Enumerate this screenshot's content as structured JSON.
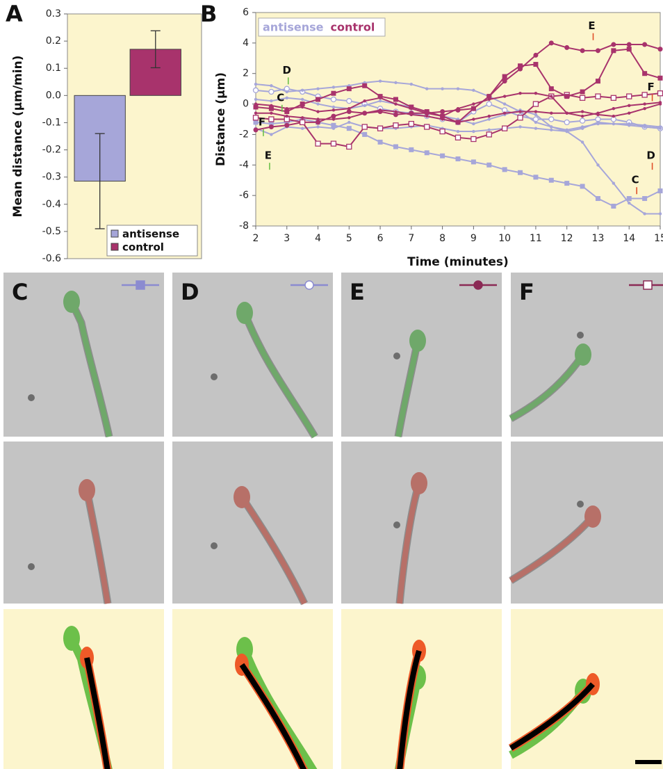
{
  "chart_data": [
    {
      "type": "bar",
      "label": "A",
      "ylabel": "Mean distance (µm/min)",
      "ylim": [
        -0.6,
        0.3
      ],
      "yticks": [
        0.3,
        0.2,
        0.1,
        {
          "value": 0,
          "label": "0.0"
        },
        -0.1,
        -0.2,
        -0.3,
        -0.4,
        -0.5,
        -0.6
      ],
      "background": "#fcf5cd",
      "legend": "lower right",
      "series": [
        {
          "name": "antisense",
          "color": "#a6a6d9",
          "values": [
            -0.315
          ],
          "errors": [
            0.175
          ]
        },
        {
          "name": "control",
          "color": "#a8336c",
          "values": [
            0.17
          ],
          "errors": [
            0.068
          ]
        }
      ]
    },
    {
      "type": "line",
      "label": "B",
      "xlabel": "Time (minutes)",
      "ylabel": "Distance (µm)",
      "xlim": [
        2,
        15
      ],
      "xticks": [
        2,
        3,
        4,
        5,
        6,
        7,
        8,
        9,
        10,
        11,
        12,
        13,
        14,
        15
      ],
      "ylim": [
        -8,
        6
      ],
      "yticks": [
        6,
        4,
        2,
        0,
        -2,
        -4,
        -6,
        -8
      ],
      "background": "#fcf5cd",
      "legend": [
        {
          "name": "antisense",
          "color": "#a6a6d9"
        },
        {
          "name": "control",
          "color": "#a8336c"
        }
      ],
      "x": [
        2,
        2.5,
        3,
        3.5,
        4,
        4.5,
        5,
        5.5,
        6,
        6.5,
        7,
        7.5,
        8,
        8.5,
        9,
        9.5,
        10,
        10.5,
        11,
        11.5,
        12,
        12.5,
        13,
        13.5,
        14,
        14.5,
        15
      ],
      "series": [
        {
          "color": "#a6a6d9",
          "marker": "square",
          "values": [
            -1.2,
            -1.3,
            -1.2,
            -1.0,
            -1.2,
            -1.4,
            -1.6,
            -2.0,
            -2.5,
            -2.8,
            -3.0,
            -3.2,
            -3.4,
            -3.6,
            -3.8,
            -4.0,
            -4.3,
            -4.5,
            -4.8,
            -5.0,
            -5.2,
            -5.4,
            -6.2,
            -6.7,
            -6.2,
            -6.2,
            -5.7
          ]
        },
        {
          "color": "#a6a6d9",
          "marker": "circle-open",
          "values": [
            0.9,
            0.8,
            1.0,
            0.8,
            0.5,
            0.3,
            0.2,
            0.0,
            -0.3,
            -0.5,
            -0.6,
            -0.8,
            -1.0,
            -1.2,
            -0.5,
            0.0,
            -0.4,
            -0.8,
            -1.0,
            -1.0,
            -1.2,
            -1.1,
            -1.0,
            -1.0,
            -1.2,
            -1.5,
            -1.6
          ]
        },
        {
          "color": "#a6a6d9",
          "marker": "dot",
          "values": [
            1.3,
            1.2,
            0.8,
            0.9,
            1.0,
            1.1,
            1.2,
            1.4,
            1.5,
            1.4,
            1.3,
            1.0,
            1.0,
            1.0,
            0.9,
            0.5,
            0.0,
            -0.5,
            -1.2,
            -1.5,
            -1.8,
            -2.5,
            -4.0,
            -5.2,
            -6.5,
            -7.2,
            -7.2
          ]
        },
        {
          "color": "#a6a6d9",
          "marker": "dot",
          "values": [
            -1.6,
            -2.0,
            -1.5,
            -1.6,
            -1.5,
            -1.6,
            -1.2,
            -1.5,
            -1.6,
            -1.6,
            -1.5,
            -1.4,
            -1.6,
            -1.8,
            -1.8,
            -1.7,
            -1.6,
            -1.5,
            -1.6,
            -1.7,
            -1.8,
            -1.6,
            -1.2,
            -1.3,
            -1.3,
            -1.4,
            -1.5
          ]
        },
        {
          "color": "#a6a6d9",
          "marker": "dot",
          "values": [
            0.3,
            0.2,
            0.4,
            0.3,
            0.0,
            -0.2,
            -0.3,
            -0.1,
            0.2,
            0.0,
            -0.2,
            -0.5,
            -0.8,
            -1.0,
            -1.3,
            -1.0,
            -0.7,
            -0.4,
            -0.7,
            -1.5,
            -1.7,
            -1.5,
            -1.3,
            -1.3,
            -1.4,
            -1.5,
            -1.6
          ]
        },
        {
          "color": "#a8336c",
          "marker": "circle",
          "values": [
            -1.7,
            -1.5,
            -1.4,
            -1.2,
            -1.2,
            -0.8,
            -0.5,
            -0.6,
            -0.5,
            -0.7,
            -0.6,
            -0.6,
            -0.5,
            -0.4,
            -0.3,
            0.5,
            1.5,
            2.3,
            3.2,
            4.0,
            3.7,
            3.5,
            3.5,
            3.9,
            3.9,
            3.9,
            3.6
          ]
        },
        {
          "color": "#a8336c",
          "marker": "square-open",
          "values": [
            -0.9,
            -1.0,
            -1.0,
            -1.2,
            -2.6,
            -2.6,
            -2.8,
            -1.5,
            -1.6,
            -1.4,
            -1.3,
            -1.5,
            -1.8,
            -2.2,
            -2.3,
            -2.0,
            -1.6,
            -0.9,
            0.0,
            0.5,
            0.6,
            0.4,
            0.5,
            0.4,
            0.5,
            0.6,
            0.7
          ]
        },
        {
          "color": "#a8336c",
          "marker": "square",
          "values": [
            -0.2,
            -0.3,
            -0.5,
            0.0,
            0.3,
            0.7,
            1.0,
            1.2,
            0.5,
            0.3,
            -0.2,
            -0.5,
            -0.8,
            -1.2,
            -0.3,
            0.5,
            1.8,
            2.5,
            2.6,
            1.0,
            0.5,
            0.8,
            1.5,
            3.5,
            3.6,
            2.0,
            1.7
          ]
        },
        {
          "color": "#a8336c",
          "marker": "dot",
          "values": [
            0.0,
            -0.1,
            -0.3,
            -0.2,
            -0.5,
            -0.4,
            -0.3,
            0.2,
            0.4,
            0.0,
            -0.3,
            -0.6,
            -0.8,
            -0.3,
            0.0,
            0.3,
            0.5,
            0.7,
            0.7,
            0.5,
            -0.6,
            -0.8,
            -0.6,
            -0.3,
            -0.1,
            0.0,
            0.1
          ]
        },
        {
          "color": "#a8336c",
          "marker": "dot",
          "values": [
            -0.6,
            -0.6,
            -0.8,
            -0.9,
            -1.0,
            -1.0,
            -0.9,
            -0.6,
            -0.4,
            -0.5,
            -0.7,
            -0.8,
            -1.0,
            -1.2,
            -1.0,
            -0.8,
            -0.6,
            -0.5,
            -0.5,
            -0.6,
            -0.6,
            -0.5,
            -0.7,
            -0.8,
            -0.6,
            -0.3,
            0.0
          ]
        }
      ],
      "annotations": [
        {
          "text": "D",
          "x": 3,
          "y": 2.2,
          "color": "#6cc04a"
        },
        {
          "text": "C",
          "x": 2.8,
          "y": 0.4,
          "color": "#6cc04a"
        },
        {
          "text": "F",
          "x": 2.2,
          "y": -1.2,
          "color": "#6cc04a"
        },
        {
          "text": "E",
          "x": 2.4,
          "y": -3.4,
          "color": "#6cc04a"
        },
        {
          "text": "E",
          "x": 12.8,
          "y": 5.1,
          "color": "#e0502a"
        },
        {
          "text": "F",
          "x": 14.7,
          "y": 1.1,
          "color": "#e0502a"
        },
        {
          "text": "D",
          "x": 14.7,
          "y": -3.4,
          "color": "#e0502a"
        },
        {
          "text": "C",
          "x": 14.2,
          "y": -5.0,
          "color": "#e0502a"
        }
      ]
    }
  ],
  "image_panels": {
    "labels": [
      "C",
      "D",
      "E",
      "F"
    ]
  }
}
